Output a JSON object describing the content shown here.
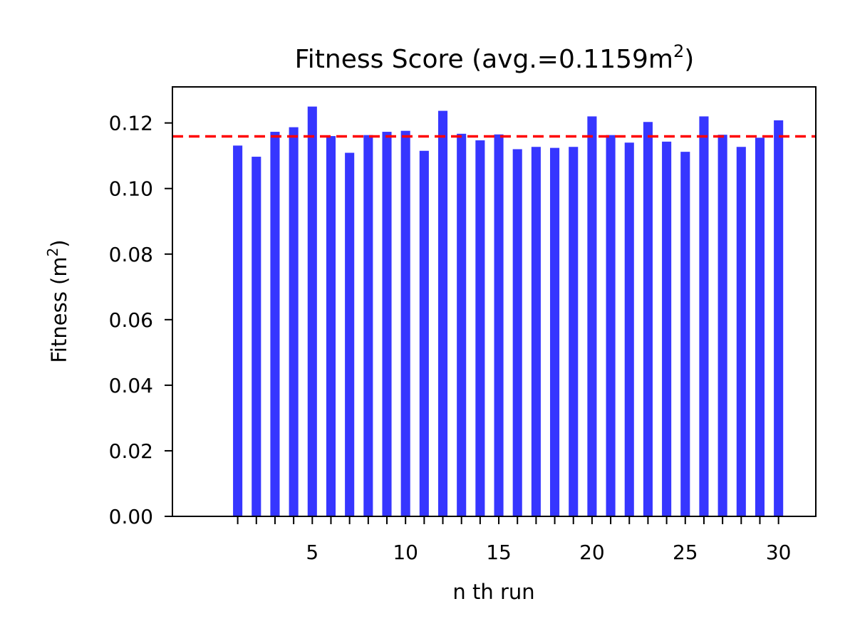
{
  "chart_data": {
    "type": "bar",
    "title": "Fitness Score (avg.=0.1159m",
    "title_superscript": "2",
    "title_suffix": ")",
    "xlabel": "n th run",
    "ylabel": "Fitness (m",
    "ylabel_superscript": "2",
    "ylabel_suffix": ")",
    "x": [
      1,
      2,
      3,
      4,
      5,
      6,
      7,
      8,
      9,
      10,
      11,
      12,
      13,
      14,
      15,
      16,
      17,
      18,
      19,
      20,
      21,
      22,
      23,
      24,
      25,
      26,
      27,
      28,
      29,
      30
    ],
    "values": [
      0.1131,
      0.1097,
      0.1173,
      0.1187,
      0.125,
      0.116,
      0.1109,
      0.1163,
      0.1173,
      0.1176,
      0.1115,
      0.1237,
      0.1167,
      0.1147,
      0.1165,
      0.112,
      0.1127,
      0.1124,
      0.1127,
      0.122,
      0.1163,
      0.114,
      0.1203,
      0.1143,
      0.1112,
      0.122,
      0.1164,
      0.1127,
      0.1155,
      0.1208
    ],
    "average": 0.1159,
    "xlim": [
      -2.5,
      32
    ],
    "ylim": [
      0,
      0.131
    ],
    "xticks": [
      5,
      10,
      15,
      20,
      25,
      30
    ],
    "xtick_labels": [
      "5",
      "10",
      "15",
      "20",
      "25",
      "30"
    ],
    "yticks": [
      0,
      0.02,
      0.04,
      0.06,
      0.08,
      0.1,
      0.12
    ],
    "ytick_labels": [
      "0.00",
      "0.02",
      "0.04",
      "0.06",
      "0.08",
      "0.10",
      "0.12"
    ],
    "bar_color": "#3636ff",
    "avg_line_color": "#ff0000",
    "avg_line_style": "dashed",
    "grid": false,
    "legend": "none"
  }
}
